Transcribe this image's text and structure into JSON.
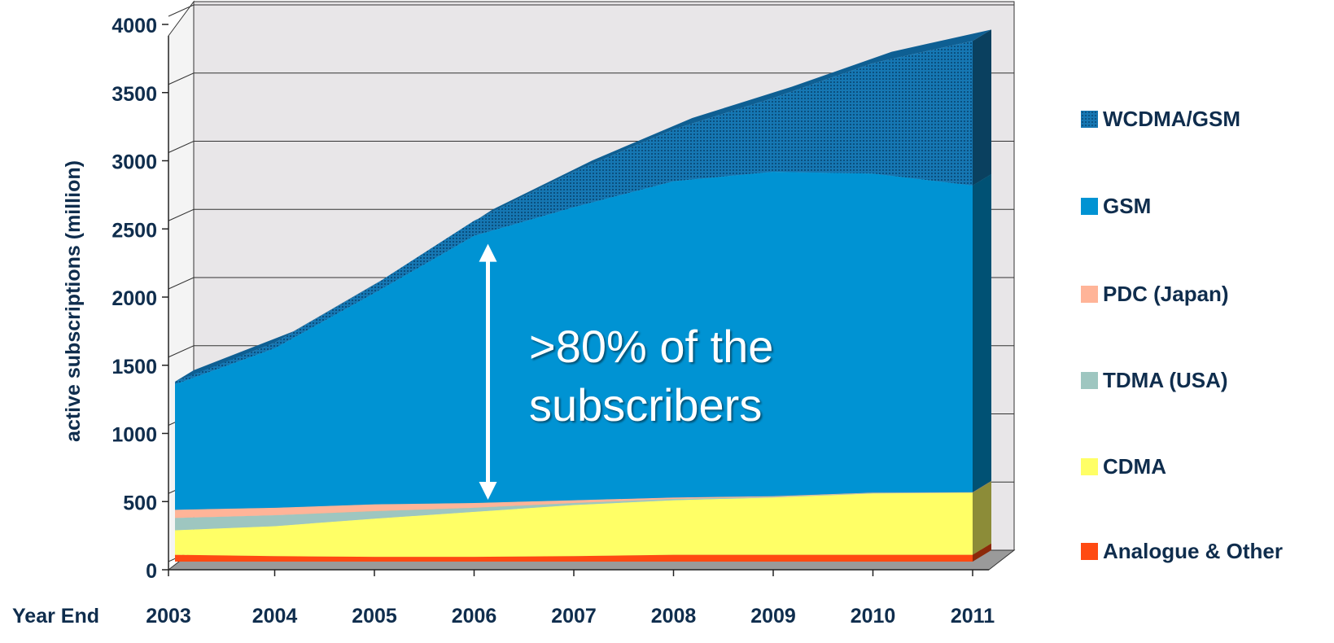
{
  "chart_data": {
    "type": "area",
    "stacked": true,
    "three_d": true,
    "ylabel": "active subscriptions (million)",
    "xlabel": "Year End",
    "categories": [
      "2003",
      "2004",
      "2005",
      "2006",
      "2007",
      "2008",
      "2009",
      "2010",
      "2011"
    ],
    "y_ticks": [
      "0",
      "500",
      "1000",
      "1500",
      "2000",
      "2500",
      "3000",
      "3500",
      "4000"
    ],
    "ylim": [
      0,
      4000
    ],
    "grid": true,
    "legend_position": "right",
    "series": [
      {
        "name": "Analogue & Other",
        "color": "#ff4a12",
        "values": [
          50,
          40,
          35,
          35,
          40,
          50,
          50,
          50,
          50
        ]
      },
      {
        "name": "CDMA",
        "color": "#ffff66",
        "values": [
          180,
          220,
          280,
          330,
          375,
          400,
          420,
          450,
          455
        ]
      },
      {
        "name": "TDMA (USA)",
        "color": "#9ec6c0",
        "values": [
          90,
          80,
          55,
          30,
          15,
          10,
          5,
          3,
          2
        ]
      },
      {
        "name": "PDC (Japan)",
        "color": "#ffb498",
        "values": [
          60,
          55,
          50,
          35,
          20,
          10,
          5,
          3,
          2
        ]
      },
      {
        "name": "GSM",
        "color": "#0093d3",
        "values": [
          920,
          1170,
          1550,
          1960,
          2150,
          2320,
          2380,
          2340,
          2250
        ]
      },
      {
        "name": "WCDMA/GSM",
        "color": "#1274ad",
        "pattern": "dotted",
        "values": [
          20,
          40,
          60,
          110,
          260,
          380,
          540,
          810,
          1060
        ]
      }
    ],
    "annotation": {
      "line1": ">80% of the",
      "line2": "subscribers"
    }
  },
  "legend_order": [
    "WCDMA/GSM",
    "GSM",
    "PDC (Japan)",
    "TDMA (USA)",
    "CDMA",
    "Analogue & Other"
  ]
}
